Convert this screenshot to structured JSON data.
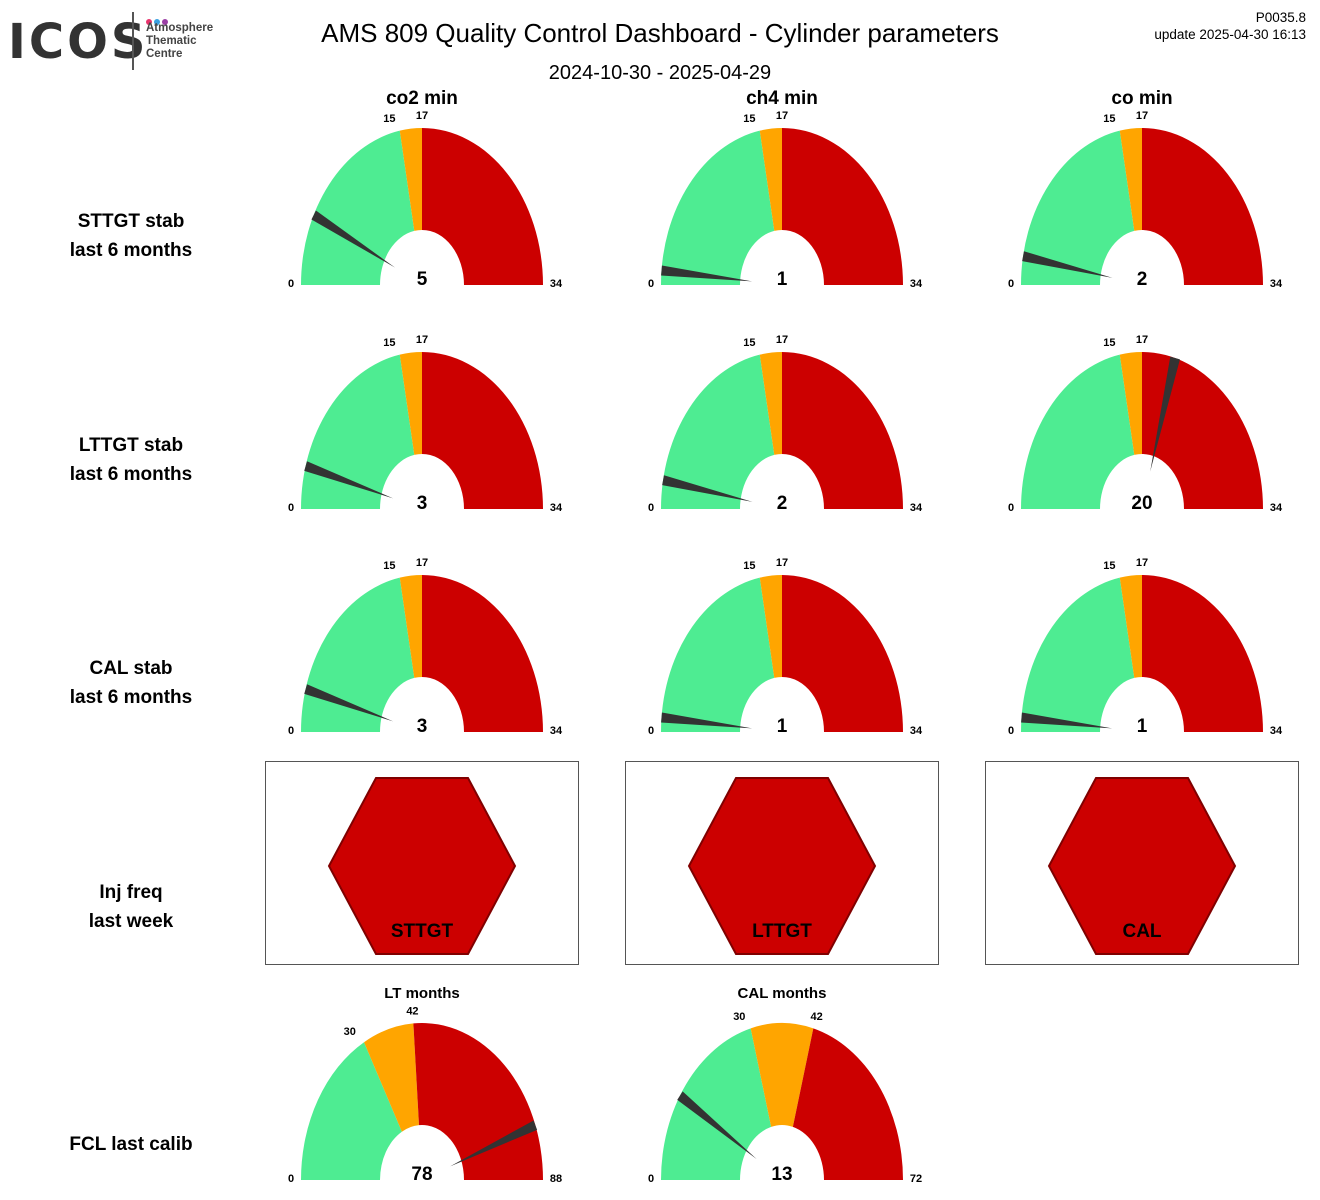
{
  "header": {
    "logo_text": "ICOS",
    "logo_subtitle": [
      "Atmosphere",
      "Thematic",
      "Centre"
    ],
    "logo_dot_colors": [
      "#e8336d",
      "#3aa0e0",
      "#9b3fa5"
    ],
    "title": "AMS 809 Quality Control Dashboard - Cylinder parameters",
    "date_range": "2024-10-30 - 2025-04-29",
    "version": "P0035.8",
    "update": "update  2025-04-30 16:13"
  },
  "colors": {
    "good": "#4eec92",
    "warning": "#ffa500",
    "bad": "#cc0000",
    "needle": "#333333",
    "hexagon_fill": "#cc0000",
    "hexagon_stroke": "#800000"
  },
  "column_headers": [
    "co2 min",
    "ch4 min",
    "co min"
  ],
  "row_labels": [
    [
      "STTGT stab",
      "last 6 months"
    ],
    [
      "LTTGT stab",
      "last 6 months"
    ],
    [
      "CAL stab",
      "last 6 months"
    ],
    [
      "Inj freq",
      "last week"
    ],
    [
      "FCL last calib"
    ]
  ],
  "chart_data": [
    {
      "type": "gauge-grid",
      "rows": [
        "STTGT stab last 6 months",
        "LTTGT stab last 6 months",
        "CAL stab last 6 months"
      ],
      "columns": [
        "co2 min",
        "ch4 min",
        "co min"
      ],
      "range": [
        0,
        34
      ],
      "thresholds": [
        15,
        17
      ],
      "zones": [
        "good",
        "warning",
        "bad"
      ],
      "values": [
        [
          5,
          1,
          2
        ],
        [
          3,
          2,
          20
        ],
        [
          3,
          1,
          1
        ]
      ]
    },
    {
      "type": "status",
      "title": "Inj freq last week",
      "items": [
        {
          "label": "STTGT",
          "status": "bad"
        },
        {
          "label": "LTTGT",
          "status": "bad"
        },
        {
          "label": "CAL",
          "status": "bad"
        }
      ]
    },
    {
      "type": "gauge",
      "row": "FCL last calib",
      "title": "LT months",
      "range": [
        0,
        88
      ],
      "thresholds": [
        30,
        42
      ],
      "value": 78
    },
    {
      "type": "gauge",
      "row": "FCL last calib",
      "title": "CAL months",
      "range": [
        0,
        72
      ],
      "thresholds": [
        30,
        42
      ],
      "value": 13
    }
  ]
}
